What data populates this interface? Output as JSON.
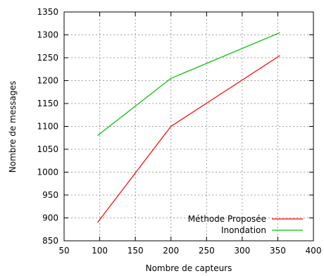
{
  "chart_data": {
    "type": "line",
    "title": "",
    "xlabel": "Nombre de capteurs",
    "ylabel": "Nombre de messages",
    "xlim": [
      50,
      400
    ],
    "ylim": [
      850,
      1350
    ],
    "xticks": [
      50,
      100,
      150,
      200,
      250,
      300,
      350,
      400
    ],
    "yticks": [
      850,
      900,
      950,
      1000,
      1050,
      1100,
      1150,
      1200,
      1250,
      1300,
      1350
    ],
    "grid": true,
    "legend_position": "bottom-right",
    "series": [
      {
        "name": "Méthode Proposée",
        "color": "#ff0000",
        "x": [
          97,
          200,
          353
        ],
        "y": [
          890,
          1100,
          1255
        ]
      },
      {
        "name": "Inondation",
        "color": "#00c000",
        "x": [
          97,
          200,
          353
        ],
        "y": [
          1080,
          1205,
          1305
        ]
      }
    ]
  }
}
